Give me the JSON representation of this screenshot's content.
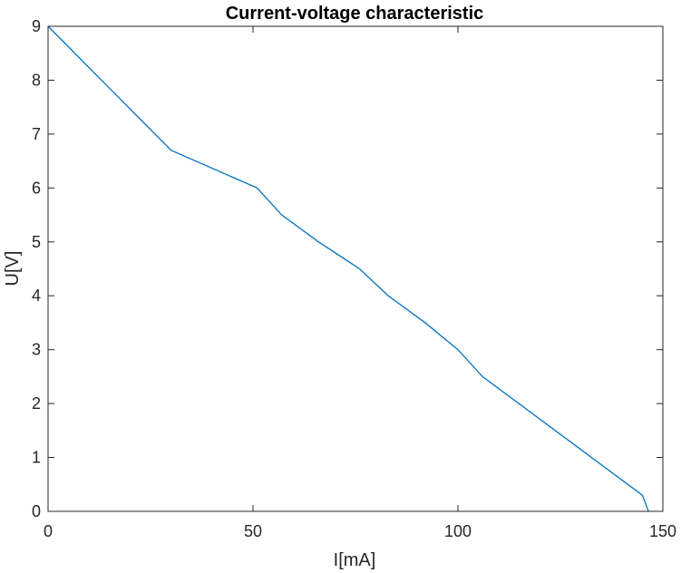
{
  "chart_data": {
    "type": "line",
    "title": "Current-voltage characteristic",
    "xlabel": "I[mA]",
    "ylabel": "U[V]",
    "xlim": [
      0,
      150
    ],
    "ylim": [
      0,
      9
    ],
    "xticks": [
      0,
      50,
      100,
      150
    ],
    "yticks": [
      0,
      1,
      2,
      3,
      4,
      5,
      6,
      7,
      8,
      9
    ],
    "grid": false,
    "series": [
      {
        "color": "#0072bd",
        "x": [
          0,
          30,
          51,
          57,
          66,
          76,
          83,
          92,
          100,
          106,
          145,
          146.5
        ],
        "y": [
          9,
          6.7,
          6.0,
          5.5,
          5.0,
          4.5,
          4.0,
          3.5,
          3.0,
          2.5,
          0.3,
          0.0
        ]
      }
    ]
  }
}
